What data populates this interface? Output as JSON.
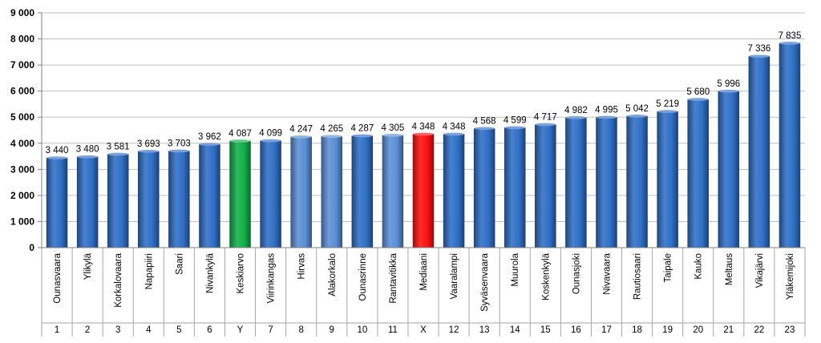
{
  "chart_data": {
    "type": "bar",
    "title": "",
    "xlabel": "",
    "ylabel": "",
    "ylim": [
      0,
      9000
    ],
    "yticks": [
      0,
      1000,
      2000,
      3000,
      4000,
      5000,
      6000,
      7000,
      8000,
      9000
    ],
    "ytick_labels": [
      "0",
      "1 000",
      "2 000",
      "3 000",
      "4 000",
      "5 000",
      "6 000",
      "7 000",
      "8 000",
      "9 000"
    ],
    "grid": true,
    "categories": [
      "Ounasvaara",
      "Ylikylä",
      "Korkalovaara",
      "Napapiiri",
      "Saari",
      "Nivankylä",
      "Keskiarvo",
      "Viirinkangas",
      "Hirvas",
      "Alakorkalo",
      "Ounasrinne",
      "Rantavitikka",
      "Mediaani",
      "Vaaralampi",
      "Syväsenvaara",
      "Muurola",
      "Koskenkylä",
      "Ounasjoki",
      "Nivavaara",
      "Rautiosaari",
      "Taipale",
      "Kauko",
      "Meltaus",
      "Vikajärvi",
      "Yläkemijoki"
    ],
    "ranks": [
      "1",
      "2",
      "3",
      "4",
      "5",
      "6",
      "Y",
      "7",
      "8",
      "9",
      "10",
      "11",
      "X",
      "12",
      "13",
      "14",
      "15",
      "16",
      "17",
      "18",
      "19",
      "20",
      "21",
      "22",
      "23"
    ],
    "values": [
      3440,
      3480,
      3581,
      3693,
      3703,
      3962,
      4087,
      4099,
      4247,
      4265,
      4287,
      4305,
      4348,
      4348,
      4568,
      4599,
      4717,
      4982,
      4995,
      5042,
      5219,
      5680,
      5996,
      7336,
      7835
    ],
    "value_labels": [
      "3 440",
      "3 480",
      "3 581",
      "3 693",
      "3 703",
      "3 962",
      "4 087",
      "4 099",
      "4 247",
      "4 265",
      "4 287",
      "4 305",
      "4 348",
      "4 348",
      "4 568",
      "4 599",
      "4 717",
      "4 982",
      "4 995",
      "5 042",
      "5 219",
      "5 680",
      "5 996",
      "7 336",
      "7 835"
    ],
    "bar_colors": [
      "#2f6fc6",
      "#2f6fc6",
      "#2f6fc6",
      "#2f6fc6",
      "#2f6fc6",
      "#2f6fc6",
      "#12b04a",
      "#2f6fc6",
      "#5b8fd6",
      "#5b8fd6",
      "#2f6fc6",
      "#5b8fd6",
      "#ff1010",
      "#2f6fc6",
      "#2f6fc6",
      "#2f6fc6",
      "#2f6fc6",
      "#2f6fc6",
      "#2f6fc6",
      "#2f6fc6",
      "#2f6fc6",
      "#2f6fc6",
      "#2f6fc6",
      "#2f6fc6",
      "#2f6fc6"
    ]
  }
}
